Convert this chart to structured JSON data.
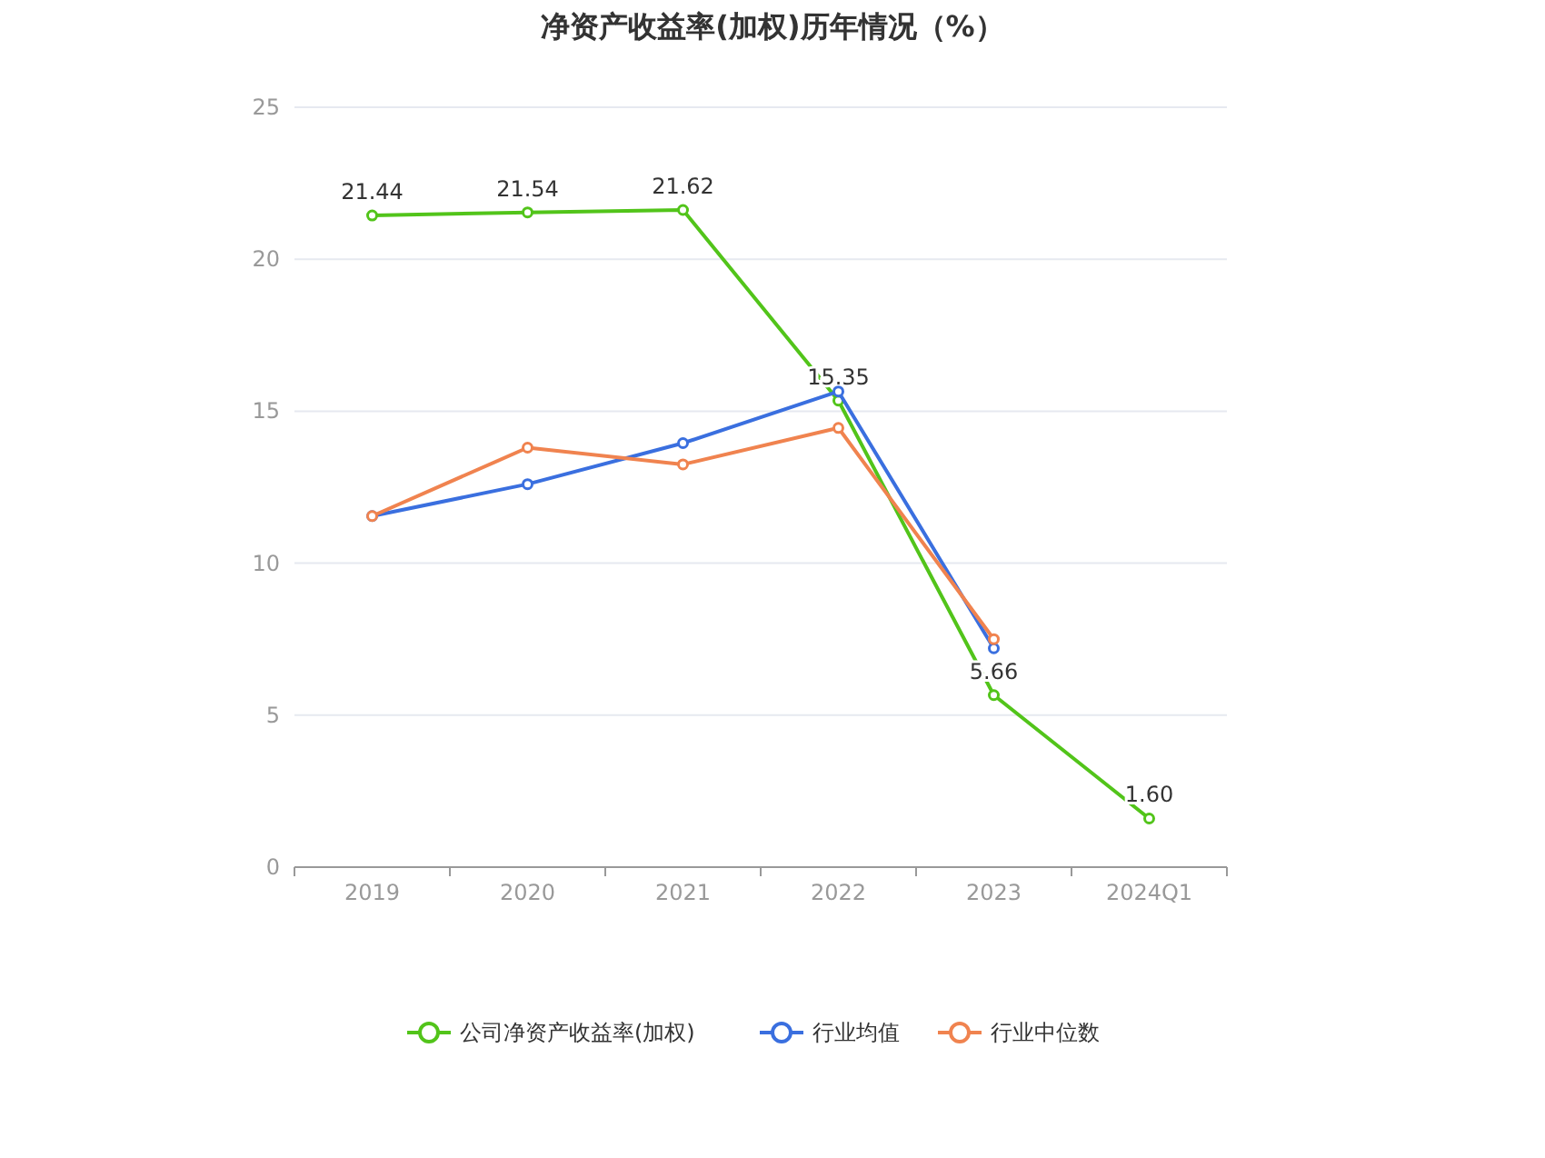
{
  "chart_data": {
    "type": "line",
    "title": "净资产收益率(加权)历年情况（%）",
    "categories": [
      "2019",
      "2020",
      "2021",
      "2022",
      "2023",
      "2024Q1"
    ],
    "ylim": [
      0,
      25
    ],
    "yticks": [
      0,
      5,
      10,
      15,
      20,
      25
    ],
    "grid": "y",
    "legend": "bottom",
    "marker": "circle",
    "series": [
      {
        "name": "公司净资产收益率(加权)",
        "color": "#52c41a",
        "values": [
          21.44,
          21.54,
          21.62,
          15.35,
          5.66,
          1.6
        ],
        "value_labels": [
          "21.44",
          "21.54",
          "21.62",
          "15.35",
          "5.66",
          "1.60"
        ]
      },
      {
        "name": "行业均值",
        "color": "#3a6fdf",
        "values": [
          11.55,
          12.6,
          13.95,
          15.65,
          7.2,
          null
        ]
      },
      {
        "name": "行业中位数",
        "color": "#f0834f",
        "values": [
          11.55,
          13.8,
          13.25,
          14.45,
          7.5,
          null
        ]
      }
    ]
  }
}
